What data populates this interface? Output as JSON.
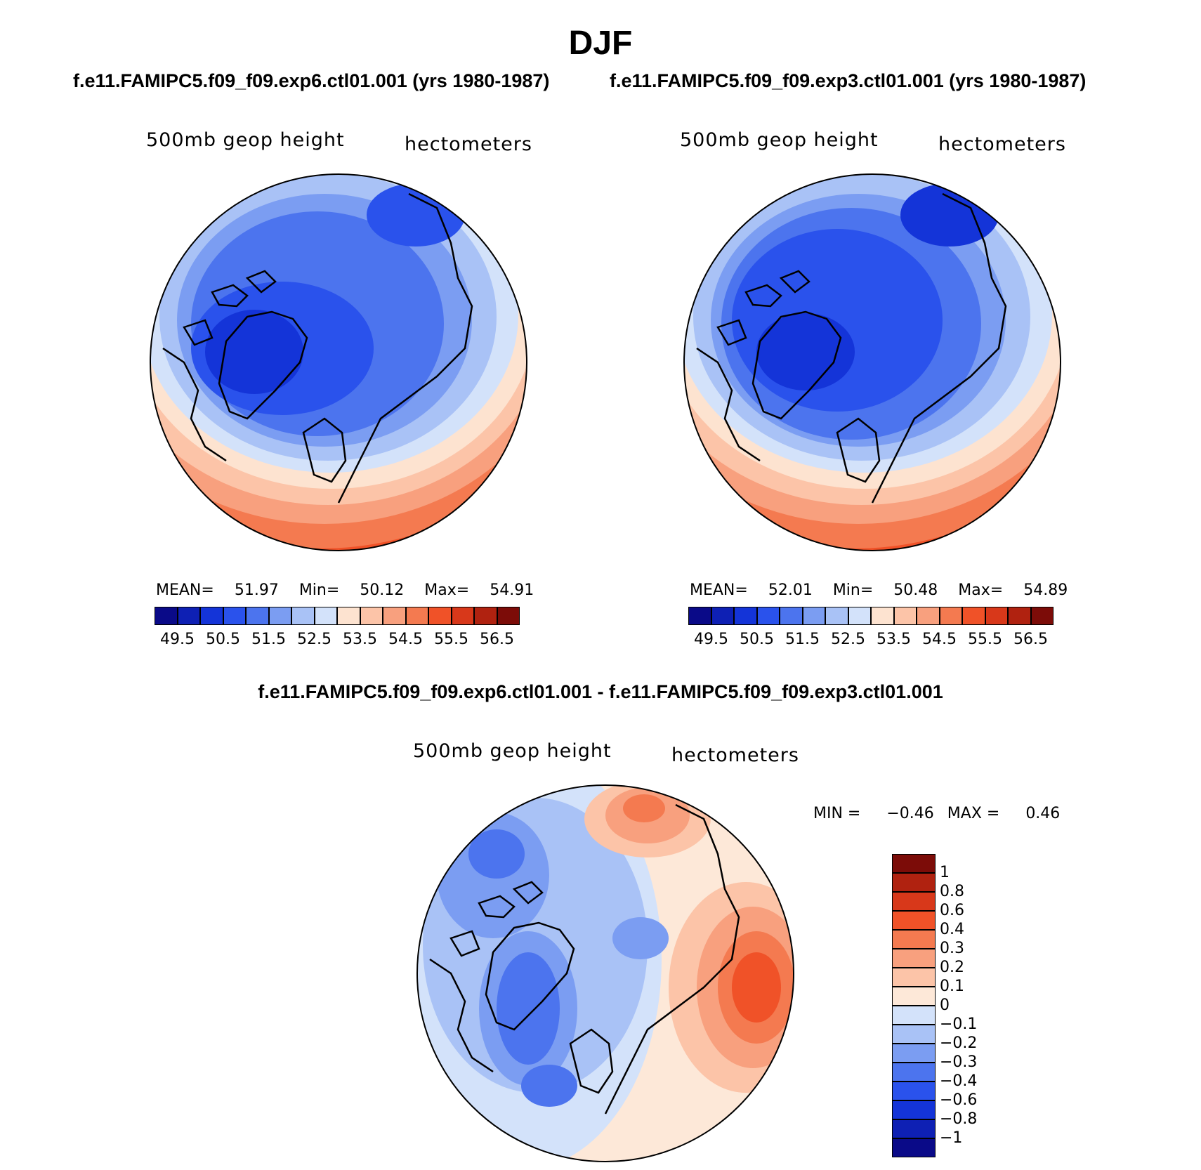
{
  "page": {
    "season": "DJF",
    "case_a_title": "f.e11.FAMIPC5.f09_f09.exp6.ctl01.001 (yrs 1980-1987)",
    "case_b_title": "f.e11.FAMIPC5.f09_f09.exp3.ctl01.001 (yrs 1980-1987)",
    "diff_title": "f.e11.FAMIPC5.f09_f09.exp6.ctl01.001 - f.e11.FAMIPC5.f09_f09.exp3.ctl01.001"
  },
  "panels": [
    {
      "variable": "500mb geop height",
      "units": "hectometers",
      "stats": {
        "mean_label": "MEAN=",
        "mean": "51.97",
        "min_label": "Min=",
        "min": "50.12",
        "max_label": "Max=",
        "max": "54.91"
      }
    },
    {
      "variable": "500mb geop height",
      "units": "hectometers",
      "stats": {
        "mean_label": "MEAN=",
        "mean": "52.01",
        "min_label": "Min=",
        "min": "50.48",
        "max_label": "Max=",
        "max": "54.89"
      }
    },
    {
      "variable": "500mb geop height",
      "units": "hectometers",
      "stats": {
        "min_label": "MIN =",
        "min": "−0.46",
        "max_label": "MAX =",
        "max": "0.46"
      }
    }
  ],
  "colorbar_abs": {
    "colors": [
      "#0a0a88",
      "#0e20b4",
      "#1434d8",
      "#2a52ec",
      "#4c74ee",
      "#7b9df2",
      "#a9c2f6",
      "#d3e2fa",
      "#fde3d0",
      "#fcc4a8",
      "#f8a07e",
      "#f47a50",
      "#f05228",
      "#d8381a",
      "#b02210",
      "#7c0c08"
    ],
    "labels": [
      "49.5",
      "50.5",
      "51.5",
      "52.5",
      "53.5",
      "54.5",
      "55.5",
      "56.5"
    ]
  },
  "colorbar_diff": {
    "colors": [
      "#0a0a88",
      "#0e20b4",
      "#1434d8",
      "#2a52ec",
      "#4c74ee",
      "#7b9df2",
      "#a9c2f6",
      "#d3e2fa",
      "#fde8d8",
      "#fcc4a8",
      "#f8a07e",
      "#f47a50",
      "#f05228",
      "#d8381a",
      "#b02210",
      "#7c0c08"
    ],
    "labels": [
      "1",
      "0.8",
      "0.6",
      "0.4",
      "0.3",
      "0.2",
      "0.1",
      "0",
      "−0.1",
      "−0.2",
      "−0.3",
      "−0.4",
      "−0.6",
      "−0.8",
      "−1"
    ]
  }
}
